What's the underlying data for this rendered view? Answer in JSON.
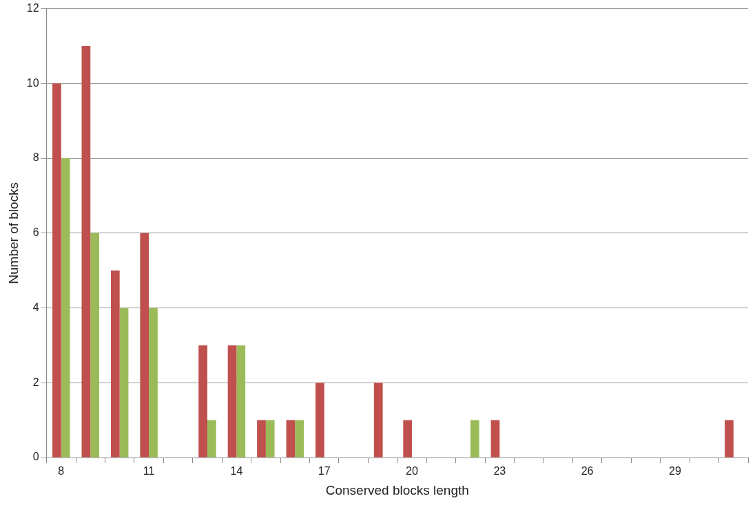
{
  "chart_data": {
    "type": "bar",
    "xlabel": "Conserved blocks length",
    "ylabel": "Number of blocks",
    "categories": [
      "8",
      null,
      null,
      "11",
      null,
      null,
      "14",
      null,
      null,
      "17",
      null,
      null,
      "20",
      null,
      null,
      "23",
      null,
      null,
      "26",
      null,
      null,
      "29",
      null,
      null
    ],
    "series": [
      {
        "color": "#c0504d",
        "values": [
          10,
          11,
          5,
          6,
          0,
          3,
          3,
          1,
          1,
          2,
          0,
          2,
          1,
          0,
          0,
          1,
          0,
          0,
          0,
          0,
          0,
          0,
          0,
          1
        ]
      },
      {
        "color": "#9bbb59",
        "values": [
          8,
          6,
          4,
          4,
          0,
          1,
          3,
          1,
          1,
          0,
          0,
          0,
          0,
          0,
          1,
          0,
          0,
          0,
          0,
          0,
          0,
          0,
          0,
          0
        ]
      }
    ],
    "ylim": [
      0,
      12
    ],
    "yticks": [
      0,
      2,
      4,
      6,
      8,
      10,
      12
    ],
    "grid": "y",
    "legend": false
  }
}
